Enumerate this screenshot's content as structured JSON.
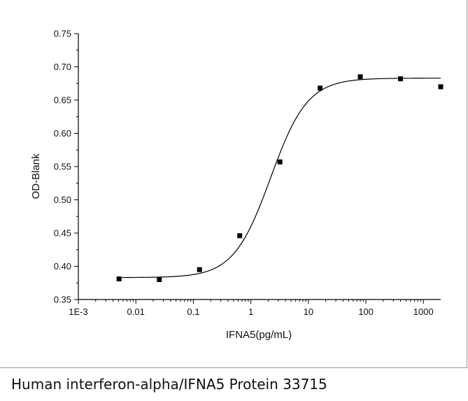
{
  "caption": "Human interferon-alpha/IFNA5 Protein 33715",
  "chart_data": {
    "type": "scatter",
    "xlabel": "IFNA5(pg/mL)",
    "ylabel": "OD-Blank",
    "x_scale": "log",
    "xlim": [
      0.001,
      2000
    ],
    "ylim": [
      0.35,
      0.75
    ],
    "x_ticks": [
      0.001,
      0.01,
      0.1,
      1,
      10,
      100,
      1000
    ],
    "x_tick_labels": [
      "1E-3",
      "0.01",
      "0.1",
      "1",
      "10",
      "100",
      "1000"
    ],
    "y_ticks": [
      0.35,
      0.4,
      0.45,
      0.5,
      0.55,
      0.6,
      0.65,
      0.7,
      0.75
    ],
    "y_tick_labels": [
      "0.35",
      "0.40",
      "0.45",
      "0.50",
      "0.55",
      "0.60",
      "0.65",
      "0.70",
      "0.75"
    ],
    "grid": false,
    "legend": "none",
    "points": [
      {
        "x": 0.0051,
        "y": 0.381
      },
      {
        "x": 0.0256,
        "y": 0.38
      },
      {
        "x": 0.128,
        "y": 0.395
      },
      {
        "x": 0.64,
        "y": 0.446
      },
      {
        "x": 3.2,
        "y": 0.557
      },
      {
        "x": 16,
        "y": 0.668
      },
      {
        "x": 80,
        "y": 0.685
      },
      {
        "x": 400,
        "y": 0.682
      },
      {
        "x": 2000,
        "y": 0.67
      }
    ],
    "fit_curve": {
      "model": "4PL",
      "bottom": 0.383,
      "top": 0.683,
      "ec50": 2.2,
      "hill": 1.35,
      "x_range": [
        0.0051,
        2000
      ]
    },
    "colors": {
      "marker": "#000000",
      "curve": "#000000",
      "axis": "#000000"
    }
  }
}
